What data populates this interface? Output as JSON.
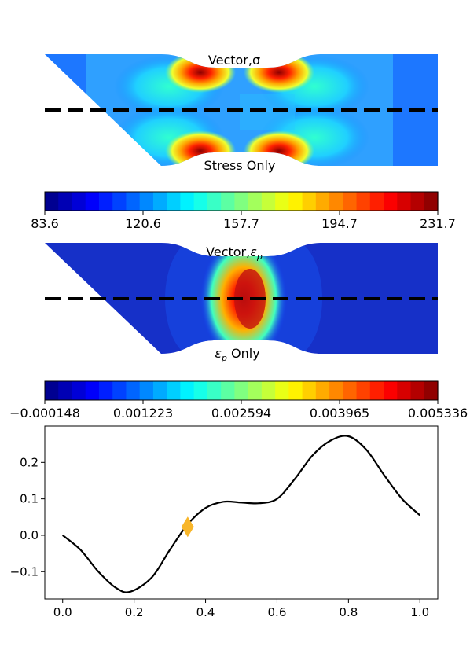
{
  "chart_data": [
    {
      "type": "heatmap",
      "title_top": "Vector,σ",
      "title_bottom": "Stress Only",
      "colormap": "jet",
      "colorbar_ticks": [
        "83.6",
        "120.6",
        "157.7",
        "194.7",
        "231.7"
      ],
      "value_range": [
        83.6,
        231.7
      ]
    },
    {
      "type": "heatmap",
      "title_top_text": "Vector,",
      "title_top_symbol": "ε",
      "title_top_sub": "p",
      "title_bottom_symbol": "ε",
      "title_bottom_sub": "p",
      "title_bottom_text": " Only",
      "colormap": "jet",
      "colorbar_ticks": [
        "−0.000148",
        "0.001223",
        "0.002594",
        "0.003965",
        "0.005336"
      ],
      "value_range": [
        -0.000148,
        0.005336
      ]
    },
    {
      "type": "line",
      "x": [
        0.0,
        0.05,
        0.1,
        0.15,
        0.19,
        0.25,
        0.3,
        0.35,
        0.4,
        0.45,
        0.5,
        0.55,
        0.6,
        0.65,
        0.7,
        0.75,
        0.8,
        0.85,
        0.9,
        0.95,
        1.0
      ],
      "y": [
        0.0,
        -0.04,
        -0.1,
        -0.145,
        -0.155,
        -0.115,
        -0.04,
        0.03,
        0.075,
        0.092,
        0.09,
        0.088,
        0.1,
        0.155,
        0.22,
        0.26,
        0.272,
        0.235,
        0.165,
        0.1,
        0.055
      ],
      "marker": {
        "x": 0.35,
        "y": 0.023,
        "shape": "diamond",
        "color": "#f8b62a"
      },
      "line_color": "#000000",
      "xlim": [
        -0.05,
        1.05
      ],
      "ylim": [
        -0.175,
        0.3
      ],
      "xticks": [
        "0.0",
        "0.2",
        "0.4",
        "0.6",
        "0.8",
        "1.0"
      ],
      "yticks": [
        "−0.1",
        "0.0",
        "0.1",
        "0.2"
      ],
      "xlabel": "",
      "ylabel": "",
      "grid": false
    }
  ]
}
